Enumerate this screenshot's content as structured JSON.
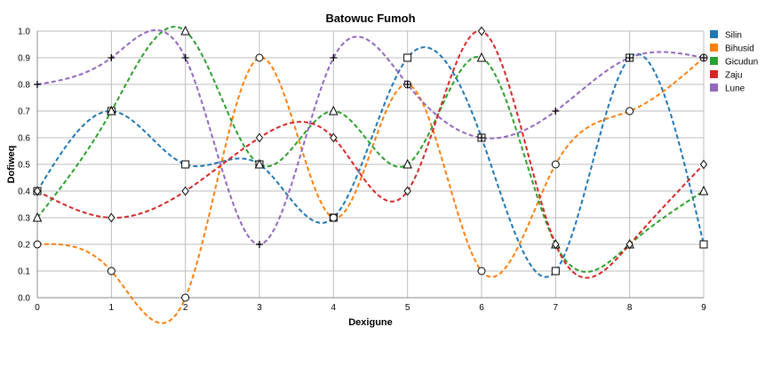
{
  "chart_data": {
    "type": "line",
    "title": "Batowuc Fumoh",
    "xlabel": "Dexigune",
    "ylabel": "Dofiweq",
    "x": [
      0,
      1,
      2,
      3,
      4,
      5,
      6,
      7,
      8,
      9
    ],
    "xlim": [
      0,
      9
    ],
    "ylim": [
      0,
      1.0
    ],
    "xticks": [
      "0",
      "1",
      "2",
      "3",
      "4",
      "5",
      "6",
      "7",
      "8",
      "9"
    ],
    "yticks": [
      "0.0",
      "0.1",
      "0.2",
      "0.3",
      "0.4",
      "0.5",
      "0.6",
      "0.7",
      "0.8",
      "0.9",
      "1.0"
    ],
    "grid": true,
    "line_style": "dashed smooth",
    "legend_position": "right",
    "series": [
      {
        "name": "Silin",
        "color": "#1f77b4",
        "marker": "square",
        "values": [
          0.4,
          0.7,
          0.5,
          0.5,
          0.3,
          0.9,
          0.6,
          0.1,
          0.9,
          0.2
        ]
      },
      {
        "name": "Bihusid",
        "color": "#ff7f0e",
        "marker": "circle",
        "values": [
          0.2,
          0.1,
          0.0,
          0.9,
          0.3,
          0.8,
          0.1,
          0.5,
          0.7,
          0.9
        ]
      },
      {
        "name": "Gicudun",
        "color": "#2ca02c",
        "marker": "triangle",
        "values": [
          0.3,
          0.7,
          1.0,
          0.5,
          0.7,
          0.5,
          0.9,
          0.2,
          0.2,
          0.4
        ]
      },
      {
        "name": "Zaju",
        "color": "#d62728",
        "marker": "diamond",
        "values": [
          0.4,
          0.3,
          0.4,
          0.6,
          0.6,
          0.4,
          1.0,
          0.2,
          0.2,
          0.5
        ]
      },
      {
        "name": "Lune",
        "color": "#9467bd",
        "marker": "plus",
        "values": [
          0.8,
          0.9,
          0.9,
          0.2,
          0.9,
          0.8,
          0.6,
          0.7,
          0.9,
          0.9
        ]
      }
    ]
  }
}
